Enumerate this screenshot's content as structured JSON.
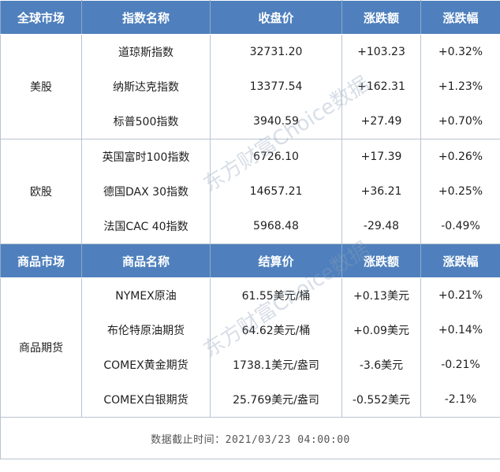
{
  "section1": {
    "headers": [
      "全球市场",
      "指数名称",
      "收盘价",
      "涨跌额",
      "涨跌幅"
    ],
    "groups": [
      {
        "market": "美股",
        "rows": [
          [
            "道琼斯指数",
            "32731.20",
            "+103.23",
            "+0.32%"
          ],
          [
            "纳斯达克指数",
            "13377.54",
            "+162.31",
            "+1.23%"
          ],
          [
            "标普500指数",
            "3940.59",
            "+27.49",
            "+0.70%"
          ]
        ]
      },
      {
        "market": "欧股",
        "rows": [
          [
            "英国富时100指数",
            "6726.10",
            "+17.39",
            "+0.26%"
          ],
          [
            "德国DAX 30指数",
            "14657.21",
            "+36.21",
            "+0.25%"
          ],
          [
            "法国CAC 40指数",
            "5968.48",
            "-29.48",
            "-0.49%"
          ]
        ]
      }
    ]
  },
  "section2": {
    "headers": [
      "商品市场",
      "商品名称",
      "结算价",
      "涨跌额",
      "涨跌幅"
    ],
    "groups": [
      {
        "market": "商品期货",
        "rows": [
          [
            "NYMEX原油",
            "61.55美元/桶",
            "+0.13美元",
            "+0.21%"
          ],
          [
            "布伦特原油期货",
            "64.62美元/桶",
            "+0.09美元",
            "+0.14%"
          ],
          [
            "COMEX黄金期货",
            "1738.1美元/盎司",
            "-3.6美元",
            "-0.21%"
          ],
          [
            "COMEX白银期货",
            "25.769美元/盎司",
            "-0.552美元",
            "-2.1%"
          ]
        ]
      }
    ]
  },
  "footer": "数据截止时间：2021/03/23 04:00:00",
  "watermark": "东方财富Choice数据",
  "colors": {
    "header_bg": "#4f80bd",
    "header_text": "#ffffff",
    "border": "#b9c3cf"
  }
}
